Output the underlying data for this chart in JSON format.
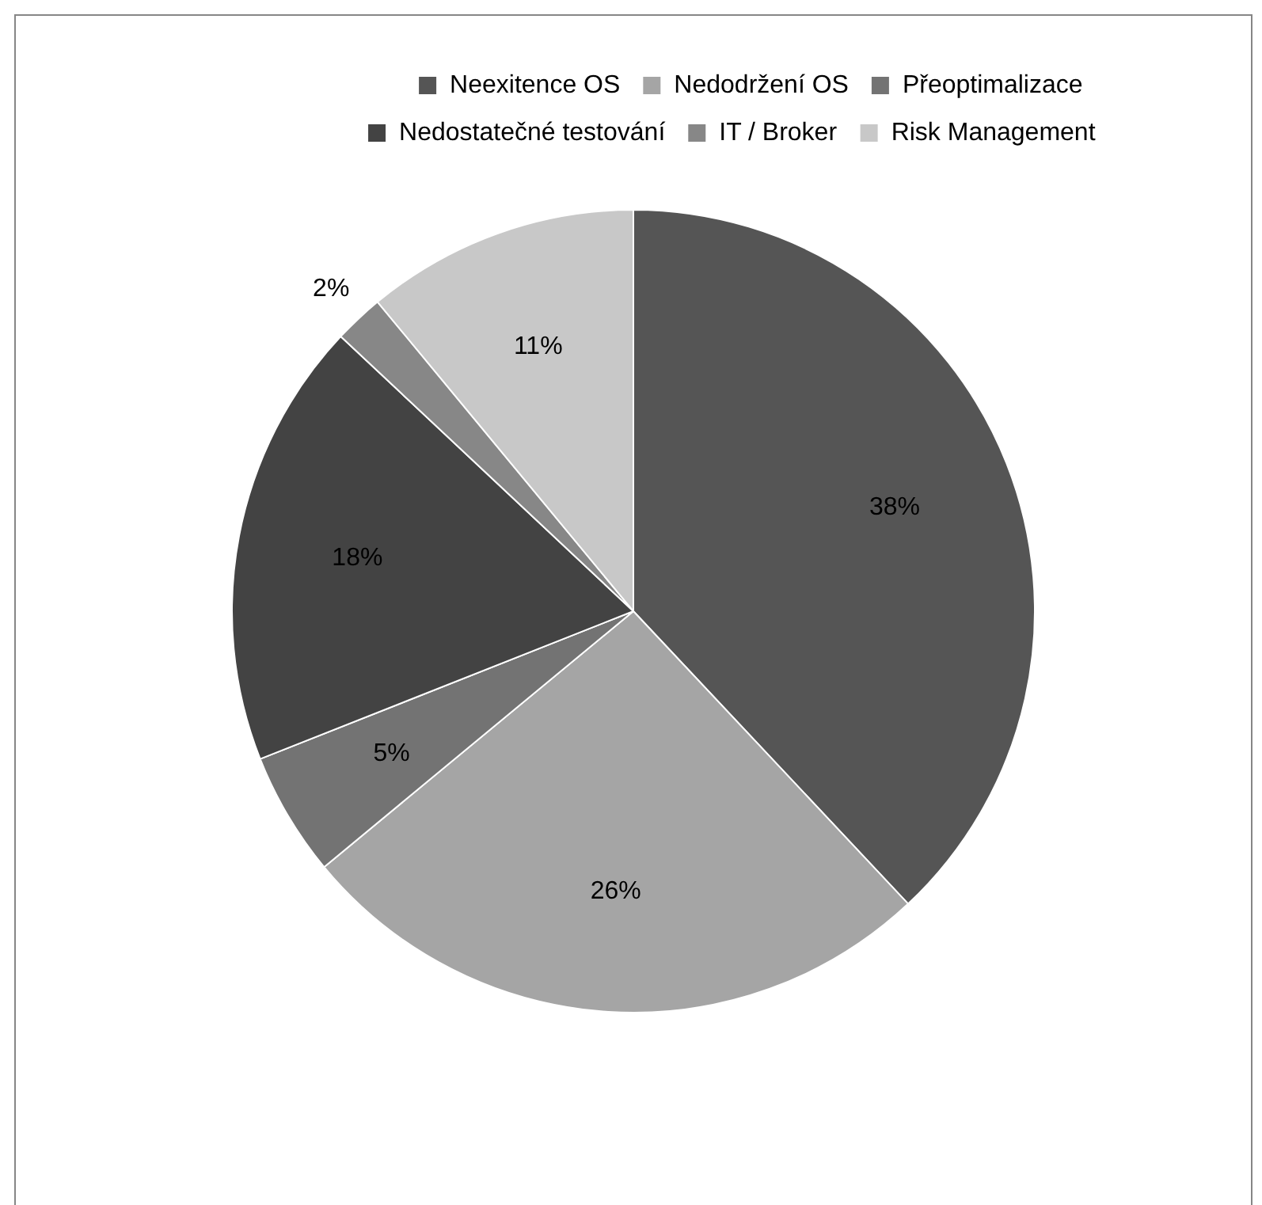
{
  "chart_data": {
    "type": "pie",
    "categories": [
      "Neexitence OS",
      "Nedodržení OS",
      "Přeoptimalizace",
      "Nedostatečné testování",
      "IT / Broker",
      "Risk Management"
    ],
    "values": [
      38,
      26,
      5,
      18,
      2,
      11
    ],
    "value_labels": [
      "38%",
      "26%",
      "5%",
      "18%",
      "2%",
      "11%"
    ],
    "colors": [
      "#555555",
      "#a5a5a5",
      "#737373",
      "#434343",
      "#878787",
      "#c8c8c8"
    ],
    "legend": "top"
  }
}
